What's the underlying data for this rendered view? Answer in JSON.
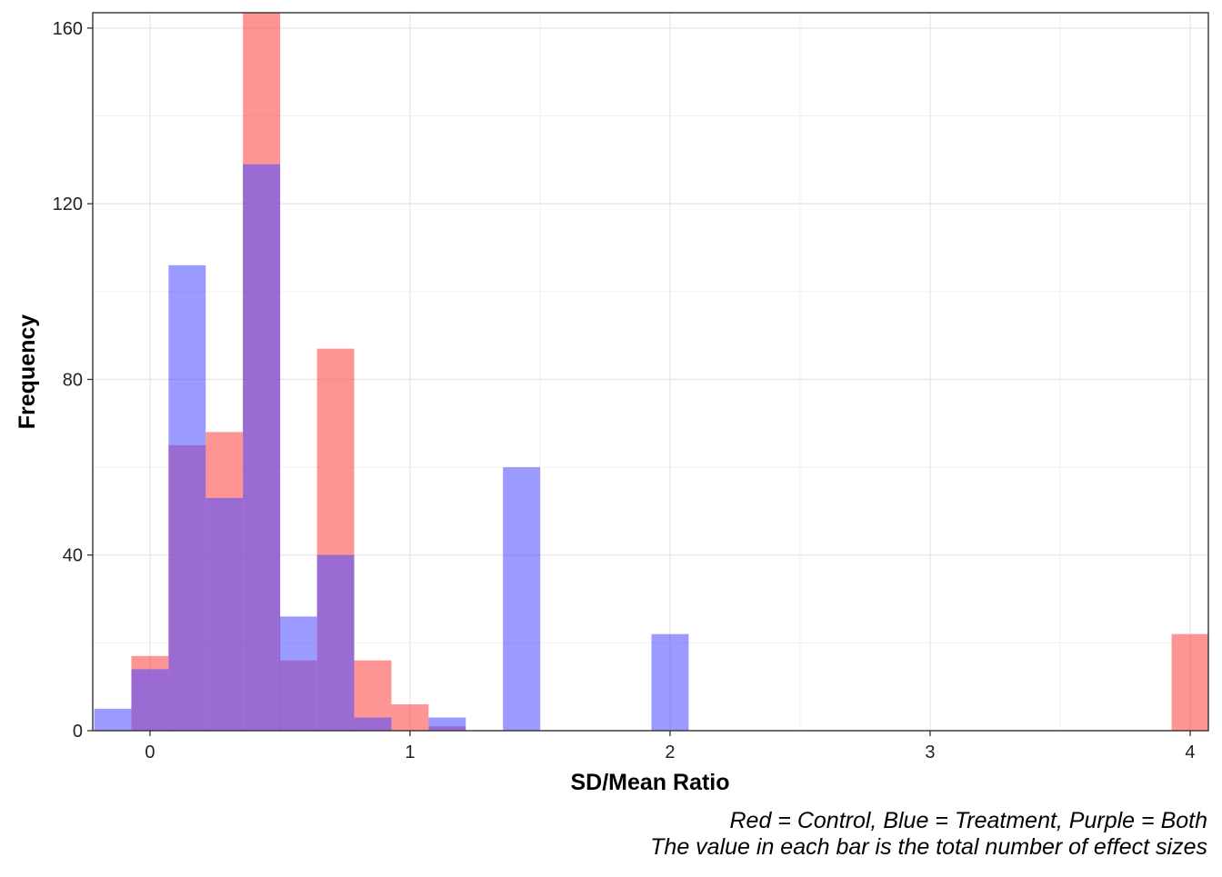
{
  "chart_data": {
    "type": "bar",
    "xlabel": "SD/Mean Ratio",
    "ylabel": "Frequency",
    "caption": [
      "Red = Control, Blue = Treatment, Purple = Both",
      "The value in each bar is the total number of effect sizes"
    ],
    "xlim": [
      -0.22,
      4.07
    ],
    "ylim": [
      0,
      163.5
    ],
    "x_ticks": [
      0,
      1,
      2,
      3,
      4
    ],
    "x_tick_labels": [
      "0",
      "1",
      "2",
      "3",
      "4"
    ],
    "y_ticks": [
      0,
      40,
      80,
      120,
      160
    ],
    "y_tick_labels": [
      "0",
      "40",
      "80",
      "120",
      "160"
    ],
    "bin_width": 0.143,
    "grid": true,
    "series": [
      {
        "name": "Control",
        "color": "#ff4d4d",
        "opacity": 0.6,
        "bins": [
          {
            "x": 0.0,
            "value": 17
          },
          {
            "x": 0.143,
            "value": 65
          },
          {
            "x": 0.286,
            "value": 68
          },
          {
            "x": 0.429,
            "value": 164
          },
          {
            "x": 0.571,
            "value": 16
          },
          {
            "x": 0.714,
            "value": 87
          },
          {
            "x": 0.857,
            "value": 16
          },
          {
            "x": 1.0,
            "value": 6
          },
          {
            "x": 1.143,
            "value": 1
          },
          {
            "x": 4.0,
            "value": 22
          }
        ]
      },
      {
        "name": "Treatment",
        "color": "#4d4dff",
        "opacity": 0.57,
        "bins": [
          {
            "x": -0.143,
            "value": 5
          },
          {
            "x": 0.0,
            "value": 14
          },
          {
            "x": 0.143,
            "value": 106
          },
          {
            "x": 0.286,
            "value": 53
          },
          {
            "x": 0.429,
            "value": 129
          },
          {
            "x": 0.571,
            "value": 26
          },
          {
            "x": 0.714,
            "value": 40
          },
          {
            "x": 0.857,
            "value": 3
          },
          {
            "x": 1.143,
            "value": 3
          },
          {
            "x": 1.429,
            "value": 60
          },
          {
            "x": 2.0,
            "value": 22
          }
        ]
      }
    ]
  }
}
